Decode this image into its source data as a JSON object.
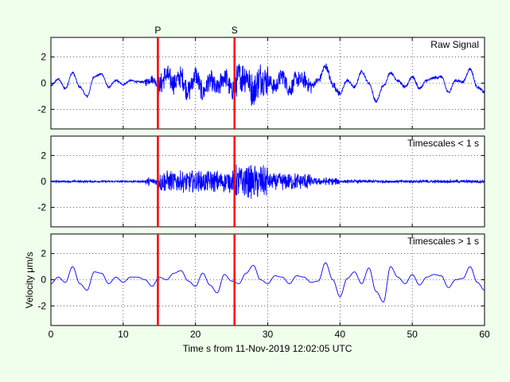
{
  "chart_data": {
    "type": "line",
    "xlabel": "Time s from 11-Nov-2019 12:02:05 UTC",
    "ylabel": "Velocity μm/s",
    "xlim": [
      0,
      60
    ],
    "x_ticks": [
      "0",
      "10",
      "20",
      "30",
      "40",
      "50",
      "60"
    ],
    "y_ticks": [
      "-2",
      "0",
      "2"
    ],
    "ylim": [
      -3.5,
      3.5
    ],
    "grid": true,
    "markers": [
      {
        "label": "P",
        "x": 14.8,
        "color": "#ff0000"
      },
      {
        "label": "S",
        "x": 25.4,
        "color": "#ff0000"
      }
    ],
    "panels": [
      {
        "title": "Raw Signal",
        "color": "#0000ff",
        "anchors": [
          [
            0,
            -0.2
          ],
          [
            1,
            0.3
          ],
          [
            2,
            -0.4
          ],
          [
            3,
            0.8
          ],
          [
            4,
            -0.3
          ],
          [
            5,
            -1.0
          ],
          [
            6,
            0.5
          ],
          [
            7,
            0.7
          ],
          [
            8,
            -0.3
          ],
          [
            9,
            0.2
          ],
          [
            10,
            -0.1
          ],
          [
            11,
            0.2
          ],
          [
            12,
            0.1
          ],
          [
            13,
            0.1
          ],
          [
            14,
            0.3
          ],
          [
            15,
            -0.2
          ],
          [
            16,
            0.6
          ],
          [
            17,
            0.0
          ],
          [
            18,
            0.5
          ],
          [
            19,
            -0.6
          ],
          [
            20,
            0.6
          ],
          [
            21,
            -0.7
          ],
          [
            22,
            0.2
          ],
          [
            23,
            -0.5
          ],
          [
            24,
            0.5
          ],
          [
            25,
            -0.5
          ],
          [
            26,
            0.4
          ],
          [
            27,
            0.6
          ],
          [
            28,
            -0.6
          ],
          [
            29,
            0.4
          ],
          [
            30,
            0.2
          ],
          [
            31,
            -0.3
          ],
          [
            32,
            0.6
          ],
          [
            33,
            -0.5
          ],
          [
            34,
            0.3
          ],
          [
            35,
            0.2
          ],
          [
            36,
            -0.2
          ],
          [
            37,
            0.2
          ],
          [
            38,
            1.3
          ],
          [
            39,
            -0.1
          ],
          [
            40,
            -0.8
          ],
          [
            41,
            0.2
          ],
          [
            42,
            -0.3
          ],
          [
            43,
            0.9
          ],
          [
            44,
            0.0
          ],
          [
            45,
            -1.4
          ],
          [
            46,
            -0.2
          ],
          [
            47,
            0.8
          ],
          [
            48,
            0.2
          ],
          [
            49,
            -0.3
          ],
          [
            50,
            0.5
          ],
          [
            51,
            -0.4
          ],
          [
            52,
            0.2
          ],
          [
            53,
            0.4
          ],
          [
            54,
            0.5
          ],
          [
            55,
            -0.7
          ],
          [
            56,
            0.2
          ],
          [
            57,
            0.1
          ],
          [
            58,
            1.1
          ],
          [
            59,
            -0.3
          ],
          [
            60,
            -0.7
          ]
        ],
        "noise_segments": [
          [
            0,
            13,
            0.08
          ],
          [
            13,
            14.8,
            0.35
          ],
          [
            14.8,
            25.4,
            0.9
          ],
          [
            25.4,
            30,
            1.4
          ],
          [
            30,
            36,
            0.7
          ],
          [
            36,
            40,
            0.3
          ],
          [
            40,
            60,
            0.12
          ]
        ]
      },
      {
        "title": "Timescales < 1 s",
        "color": "#0000ff",
        "anchors": [
          [
            0,
            0
          ],
          [
            60,
            0
          ]
        ],
        "noise_segments": [
          [
            0,
            13,
            0.08
          ],
          [
            13,
            14.8,
            0.35
          ],
          [
            14.8,
            25.4,
            0.9
          ],
          [
            25.4,
            30,
            1.4
          ],
          [
            30,
            36,
            0.7
          ],
          [
            36,
            40,
            0.3
          ],
          [
            40,
            60,
            0.12
          ]
        ]
      },
      {
        "title": "Timescales > 1 s",
        "color": "#0000ff",
        "anchors": [
          [
            0,
            -0.3
          ],
          [
            1,
            0.2
          ],
          [
            2,
            -0.2
          ],
          [
            3,
            1.0
          ],
          [
            4,
            -0.3
          ],
          [
            5,
            -0.8
          ],
          [
            6,
            0.6
          ],
          [
            7,
            0.5
          ],
          [
            8,
            -0.3
          ],
          [
            9,
            0.2
          ],
          [
            10,
            -0.2
          ],
          [
            11,
            0.2
          ],
          [
            12,
            0.2
          ],
          [
            13,
            0.0
          ],
          [
            14,
            -0.5
          ],
          [
            15,
            0.2
          ],
          [
            16,
            0.0
          ],
          [
            17,
            0.5
          ],
          [
            18,
            0.7
          ],
          [
            19,
            -0.1
          ],
          [
            20,
            -0.5
          ],
          [
            21,
            0.5
          ],
          [
            22,
            -0.4
          ],
          [
            23,
            -1.0
          ],
          [
            24,
            0.4
          ],
          [
            25,
            -0.1
          ],
          [
            26,
            -0.3
          ],
          [
            27,
            0.5
          ],
          [
            28,
            1.1
          ],
          [
            29,
            0.0
          ],
          [
            30,
            -0.3
          ],
          [
            31,
            0.3
          ],
          [
            32,
            0.2
          ],
          [
            33,
            -0.3
          ],
          [
            34,
            0.3
          ],
          [
            35,
            0.2
          ],
          [
            36,
            -0.2
          ],
          [
            37,
            -0.1
          ],
          [
            38,
            1.3
          ],
          [
            39,
            0.0
          ],
          [
            40,
            -1.3
          ],
          [
            41,
            0.1
          ],
          [
            42,
            0.6
          ],
          [
            43,
            -0.3
          ],
          [
            44,
            0.9
          ],
          [
            45,
            -0.9
          ],
          [
            46,
            -1.7
          ],
          [
            47,
            1.0
          ],
          [
            48,
            0.2
          ],
          [
            49,
            -0.3
          ],
          [
            50,
            0.4
          ],
          [
            51,
            -0.4
          ],
          [
            52,
            0.2
          ],
          [
            53,
            0.4
          ],
          [
            54,
            0.3
          ],
          [
            55,
            -0.6
          ],
          [
            56,
            0.0
          ],
          [
            57,
            0.1
          ],
          [
            58,
            1.0
          ],
          [
            59,
            -0.2
          ],
          [
            60,
            -0.8
          ]
        ],
        "noise_segments": []
      }
    ]
  }
}
